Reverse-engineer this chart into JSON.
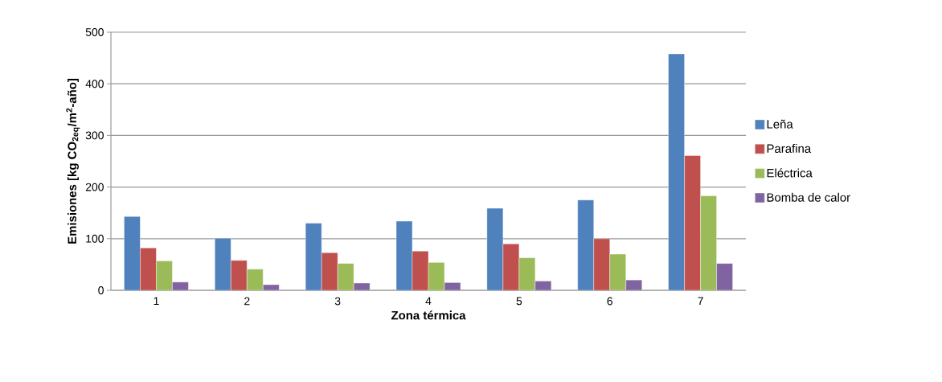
{
  "chart_data": {
    "type": "bar",
    "xlabel": "Zona térmica",
    "ylabel": "Emisiones [kg CO$_{2eq}$/m$^{2}$-año]",
    "categories": [
      "1",
      "2",
      "3",
      "4",
      "5",
      "6",
      "7"
    ],
    "series": [
      {
        "name": "Leña",
        "color": "#4f81bd",
        "values": [
          143,
          101,
          130,
          134,
          159,
          175,
          458
        ]
      },
      {
        "name": "Parafina",
        "color": "#c0504d",
        "values": [
          82,
          58,
          73,
          76,
          90,
          100,
          261
        ]
      },
      {
        "name": "Eléctrica",
        "color": "#9bbb59",
        "values": [
          57,
          41,
          52,
          54,
          63,
          70,
          183
        ]
      },
      {
        "name": "Bomba de calor",
        "color": "#8064a2",
        "values": [
          16,
          11,
          14,
          15,
          18,
          20,
          52
        ]
      }
    ],
    "ylim": [
      0,
      500
    ],
    "yticks": [
      0,
      100,
      200,
      300,
      400,
      500
    ],
    "grid": "y",
    "legend": "right"
  }
}
